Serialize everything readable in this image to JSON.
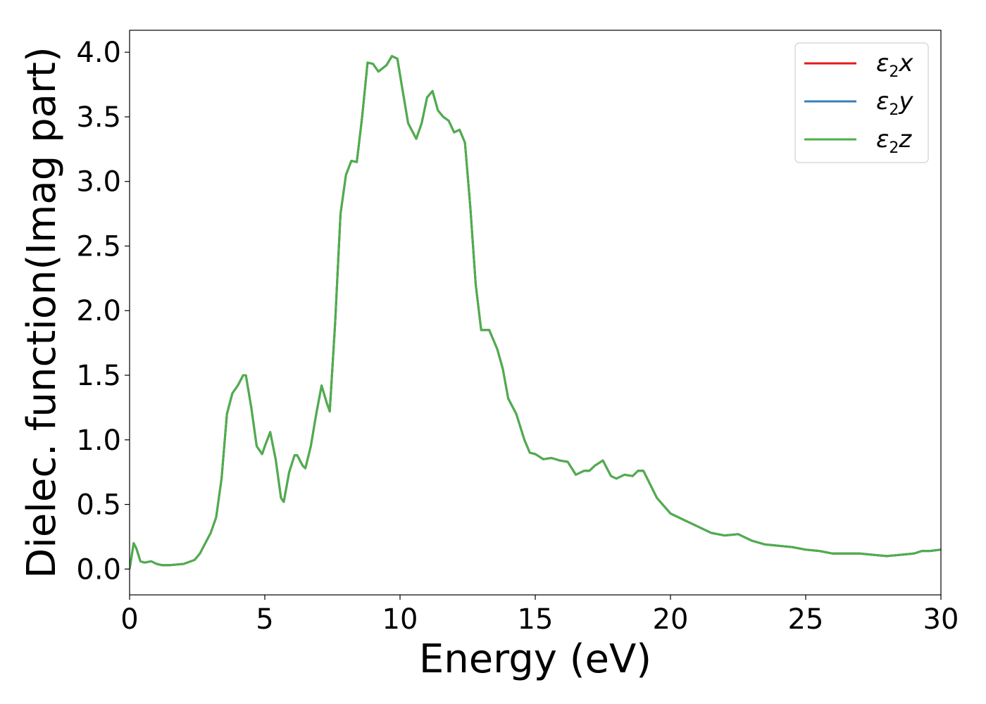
{
  "chart_data": {
    "type": "line",
    "xlabel": "Energy (eV)",
    "ylabel": "Dielec. function(Imag part)",
    "xlim": [
      0,
      30
    ],
    "ylim": [
      -0.2,
      4.17
    ],
    "xticks": [
      0,
      5,
      10,
      15,
      20,
      25,
      30
    ],
    "yticks": [
      0.0,
      0.5,
      1.0,
      1.5,
      2.0,
      2.5,
      3.0,
      3.5,
      4.0
    ],
    "xtick_labels": [
      "0",
      "5",
      "10",
      "15",
      "20",
      "25",
      "30"
    ],
    "ytick_labels": [
      "0.0",
      "0.5",
      "1.0",
      "1.5",
      "2.0",
      "2.5",
      "3.0",
      "3.5",
      "4.0"
    ],
    "grid": false,
    "legend_position": "top-right",
    "x": [
      0.0,
      0.15,
      0.25,
      0.4,
      0.55,
      0.8,
      1.0,
      1.2,
      1.5,
      2.0,
      2.4,
      2.6,
      2.8,
      3.0,
      3.2,
      3.4,
      3.6,
      3.8,
      4.0,
      4.2,
      4.3,
      4.5,
      4.7,
      4.9,
      5.0,
      5.2,
      5.4,
      5.6,
      5.7,
      5.9,
      6.1,
      6.2,
      6.4,
      6.5,
      6.7,
      6.9,
      7.1,
      7.3,
      7.4,
      7.6,
      7.8,
      8.0,
      8.2,
      8.4,
      8.6,
      8.8,
      9.0,
      9.2,
      9.5,
      9.7,
      9.9,
      10.1,
      10.3,
      10.6,
      10.8,
      11.0,
      11.2,
      11.4,
      11.6,
      11.8,
      12.0,
      12.2,
      12.4,
      12.6,
      12.8,
      13.0,
      13.3,
      13.6,
      13.8,
      14.0,
      14.3,
      14.6,
      14.8,
      15.0,
      15.3,
      15.6,
      15.9,
      16.2,
      16.5,
      16.8,
      17.0,
      17.2,
      17.5,
      17.8,
      18.0,
      18.3,
      18.6,
      18.8,
      19.0,
      19.5,
      20.0,
      20.5,
      21.0,
      21.5,
      22.0,
      22.5,
      23.0,
      23.5,
      24.0,
      24.5,
      25.0,
      25.5,
      26.0,
      26.5,
      27.0,
      27.5,
      28.0,
      28.5,
      29.0,
      29.3,
      29.6,
      30.0
    ],
    "series": [
      {
        "name": "ε2x",
        "color": "#e41a1c",
        "values": [
          0.0,
          0.2,
          0.16,
          0.06,
          0.05,
          0.06,
          0.04,
          0.03,
          0.03,
          0.04,
          0.07,
          0.12,
          0.2,
          0.28,
          0.4,
          0.7,
          1.2,
          1.36,
          1.42,
          1.5,
          1.5,
          1.25,
          0.95,
          0.89,
          0.95,
          1.06,
          0.85,
          0.55,
          0.52,
          0.75,
          0.88,
          0.88,
          0.8,
          0.78,
          0.95,
          1.2,
          1.42,
          1.28,
          1.22,
          1.9,
          2.75,
          3.05,
          3.16,
          3.15,
          3.5,
          3.92,
          3.91,
          3.85,
          3.9,
          3.97,
          3.95,
          3.7,
          3.45,
          3.33,
          3.45,
          3.65,
          3.7,
          3.55,
          3.5,
          3.47,
          3.38,
          3.4,
          3.3,
          2.8,
          2.2,
          1.85,
          1.85,
          1.7,
          1.55,
          1.32,
          1.2,
          1.0,
          0.9,
          0.89,
          0.85,
          0.86,
          0.84,
          0.83,
          0.73,
          0.76,
          0.76,
          0.8,
          0.84,
          0.72,
          0.7,
          0.73,
          0.72,
          0.76,
          0.76,
          0.55,
          0.43,
          0.38,
          0.33,
          0.28,
          0.26,
          0.27,
          0.22,
          0.19,
          0.18,
          0.17,
          0.15,
          0.14,
          0.12,
          0.12,
          0.12,
          0.11,
          0.1,
          0.11,
          0.12,
          0.14,
          0.14,
          0.15
        ]
      },
      {
        "name": "ε2y",
        "color": "#377eb8",
        "values": [
          0.0,
          0.2,
          0.16,
          0.06,
          0.05,
          0.06,
          0.04,
          0.03,
          0.03,
          0.04,
          0.07,
          0.12,
          0.2,
          0.28,
          0.4,
          0.7,
          1.2,
          1.36,
          1.42,
          1.5,
          1.5,
          1.25,
          0.95,
          0.89,
          0.95,
          1.06,
          0.85,
          0.55,
          0.52,
          0.75,
          0.88,
          0.88,
          0.8,
          0.78,
          0.95,
          1.2,
          1.42,
          1.28,
          1.22,
          1.9,
          2.75,
          3.05,
          3.16,
          3.15,
          3.5,
          3.92,
          3.91,
          3.85,
          3.9,
          3.97,
          3.95,
          3.7,
          3.45,
          3.33,
          3.45,
          3.65,
          3.7,
          3.55,
          3.5,
          3.47,
          3.38,
          3.4,
          3.3,
          2.8,
          2.2,
          1.85,
          1.85,
          1.7,
          1.55,
          1.32,
          1.2,
          1.0,
          0.9,
          0.89,
          0.85,
          0.86,
          0.84,
          0.83,
          0.73,
          0.76,
          0.76,
          0.8,
          0.84,
          0.72,
          0.7,
          0.73,
          0.72,
          0.76,
          0.76,
          0.55,
          0.43,
          0.38,
          0.33,
          0.28,
          0.26,
          0.27,
          0.22,
          0.19,
          0.18,
          0.17,
          0.15,
          0.14,
          0.12,
          0.12,
          0.12,
          0.11,
          0.1,
          0.11,
          0.12,
          0.14,
          0.14,
          0.15
        ]
      },
      {
        "name": "ε2z",
        "color": "#4daf4a",
        "values": [
          0.0,
          0.2,
          0.16,
          0.06,
          0.05,
          0.06,
          0.04,
          0.03,
          0.03,
          0.04,
          0.07,
          0.12,
          0.2,
          0.28,
          0.4,
          0.7,
          1.2,
          1.36,
          1.42,
          1.5,
          1.5,
          1.25,
          0.95,
          0.89,
          0.95,
          1.06,
          0.85,
          0.55,
          0.52,
          0.75,
          0.88,
          0.88,
          0.8,
          0.78,
          0.95,
          1.2,
          1.42,
          1.28,
          1.22,
          1.9,
          2.75,
          3.05,
          3.16,
          3.15,
          3.5,
          3.92,
          3.91,
          3.85,
          3.9,
          3.97,
          3.95,
          3.7,
          3.45,
          3.33,
          3.45,
          3.65,
          3.7,
          3.55,
          3.5,
          3.47,
          3.38,
          3.4,
          3.3,
          2.8,
          2.2,
          1.85,
          1.85,
          1.7,
          1.55,
          1.32,
          1.2,
          1.0,
          0.9,
          0.89,
          0.85,
          0.86,
          0.84,
          0.83,
          0.73,
          0.76,
          0.76,
          0.8,
          0.84,
          0.72,
          0.7,
          0.73,
          0.72,
          0.76,
          0.76,
          0.55,
          0.43,
          0.38,
          0.33,
          0.28,
          0.26,
          0.27,
          0.22,
          0.19,
          0.18,
          0.17,
          0.15,
          0.14,
          0.12,
          0.12,
          0.12,
          0.11,
          0.1,
          0.11,
          0.12,
          0.14,
          0.14,
          0.15
        ]
      }
    ],
    "legend": [
      {
        "base": "ε",
        "sub": "2",
        "var": "x"
      },
      {
        "base": "ε",
        "sub": "2",
        "var": "y"
      },
      {
        "base": "ε",
        "sub": "2",
        "var": "z"
      }
    ]
  }
}
